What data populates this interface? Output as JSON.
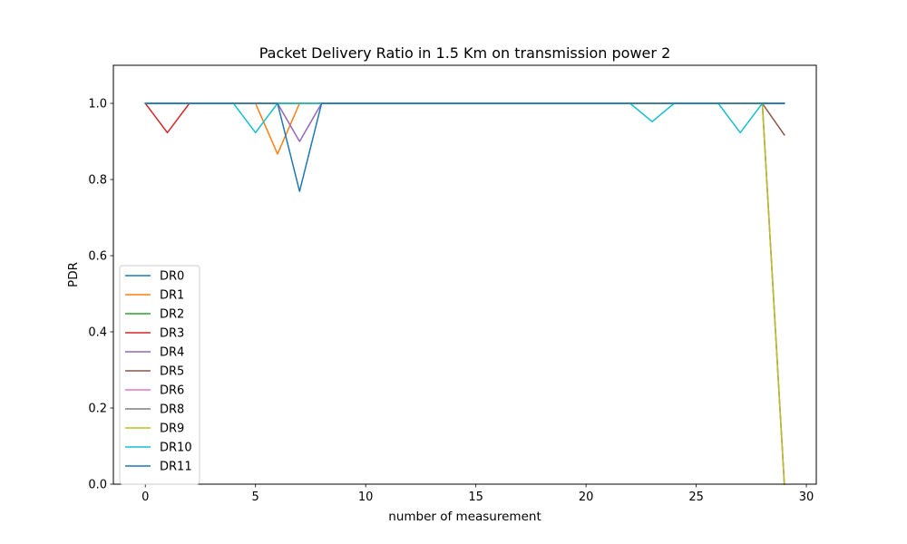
{
  "chart_data": {
    "type": "line",
    "title": "Packet Delivery Ratio in 1.5 Km on transmission power 2",
    "xlabel": "number of measurement",
    "ylabel": "PDR",
    "xlim": [
      -1.45,
      30.45
    ],
    "ylim": [
      0,
      1.1
    ],
    "xticks": [
      0,
      5,
      10,
      15,
      20,
      25,
      30
    ],
    "yticks": [
      0.0,
      0.2,
      0.4,
      0.6,
      0.8,
      1.0
    ],
    "xtick_labels": [
      "0",
      "5",
      "10",
      "15",
      "20",
      "25",
      "30"
    ],
    "ytick_labels": [
      "0.0",
      "0.2",
      "0.4",
      "0.6",
      "0.8",
      "1.0"
    ],
    "grid": false,
    "legend_position": "lower-left",
    "x": [
      0,
      1,
      2,
      3,
      4,
      5,
      6,
      7,
      8,
      9,
      10,
      11,
      12,
      13,
      14,
      15,
      16,
      17,
      18,
      19,
      20,
      21,
      22,
      23,
      24,
      25,
      26,
      27,
      28,
      29
    ],
    "series": [
      {
        "name": "DR0",
        "color": "#1f77b4",
        "values": [
          1,
          1,
          1,
          1,
          1,
          1,
          1,
          1,
          1,
          1,
          1,
          1,
          1,
          1,
          1,
          1,
          1,
          1,
          1,
          1,
          1,
          1,
          1,
          1,
          1,
          1,
          1,
          1,
          1,
          1
        ]
      },
      {
        "name": "DR1",
        "color": "#ff7f0e",
        "values": [
          1,
          1,
          1,
          1,
          1,
          1,
          0.867,
          1,
          1,
          1,
          1,
          1,
          1,
          1,
          1,
          1,
          1,
          1,
          1,
          1,
          1,
          1,
          1,
          1,
          1,
          1,
          1,
          1,
          1,
          1
        ]
      },
      {
        "name": "DR2",
        "color": "#2ca02c",
        "values": [
          1,
          1,
          1,
          1,
          1,
          1,
          1,
          1,
          1,
          1,
          1,
          1,
          1,
          1,
          1,
          1,
          1,
          1,
          1,
          1,
          1,
          1,
          1,
          1,
          1,
          1,
          1,
          1,
          1,
          1
        ]
      },
      {
        "name": "DR3",
        "color": "#d62728",
        "values": [
          1,
          0.923,
          1,
          1,
          1,
          1,
          1,
          1,
          1,
          1,
          1,
          1,
          1,
          1,
          1,
          1,
          1,
          1,
          1,
          1,
          1,
          1,
          1,
          1,
          1,
          1,
          1,
          1,
          1,
          1
        ]
      },
      {
        "name": "DR4",
        "color": "#9467bd",
        "values": [
          1,
          1,
          1,
          1,
          1,
          1,
          1,
          0.9,
          1,
          1,
          1,
          1,
          1,
          1,
          1,
          1,
          1,
          1,
          1,
          1,
          1,
          1,
          1,
          1,
          1,
          1,
          1,
          1,
          1,
          1
        ]
      },
      {
        "name": "DR5",
        "color": "#8c564b",
        "values": [
          1,
          1,
          1,
          1,
          1,
          1,
          1,
          1,
          1,
          1,
          1,
          1,
          1,
          1,
          1,
          1,
          1,
          1,
          1,
          1,
          1,
          1,
          1,
          1,
          1,
          1,
          1,
          1,
          1,
          0.917
        ]
      },
      {
        "name": "DR6",
        "color": "#e377c2",
        "values": [
          1,
          1,
          1,
          1,
          1,
          1,
          1,
          1,
          1,
          1,
          1,
          1,
          1,
          1,
          1,
          1,
          1,
          1,
          1,
          1,
          1,
          1,
          1,
          1,
          1,
          1,
          1,
          1,
          1,
          0
        ]
      },
      {
        "name": "DR8",
        "color": "#7f7f7f",
        "values": [
          1,
          1,
          1,
          1,
          1,
          1,
          1,
          1,
          1,
          1,
          1,
          1,
          1,
          1,
          1,
          1,
          1,
          1,
          1,
          1,
          1,
          1,
          1,
          1,
          1,
          1,
          1,
          1,
          1,
          0
        ]
      },
      {
        "name": "DR9",
        "color": "#bcbd22",
        "values": [
          1,
          1,
          1,
          1,
          1,
          1,
          1,
          1,
          1,
          1,
          1,
          1,
          1,
          1,
          1,
          1,
          1,
          1,
          1,
          1,
          1,
          1,
          1,
          1,
          1,
          1,
          1,
          1,
          1,
          0
        ]
      },
      {
        "name": "DR10",
        "color": "#17becf",
        "values": [
          1,
          1,
          1,
          1,
          1,
          0.923,
          1,
          1,
          1,
          1,
          1,
          1,
          1,
          1,
          1,
          1,
          1,
          1,
          1,
          1,
          1,
          1,
          1,
          0.952,
          1,
          1,
          1,
          0.923,
          1,
          1
        ]
      },
      {
        "name": "DR11",
        "color": "#1f77b4",
        "values": [
          1,
          1,
          1,
          1,
          1,
          1,
          1,
          0.769,
          1,
          1,
          1,
          1,
          1,
          1,
          1,
          1,
          1,
          1,
          1,
          1,
          1,
          1,
          1,
          1,
          1,
          1,
          1,
          1,
          1,
          1
        ]
      }
    ]
  }
}
